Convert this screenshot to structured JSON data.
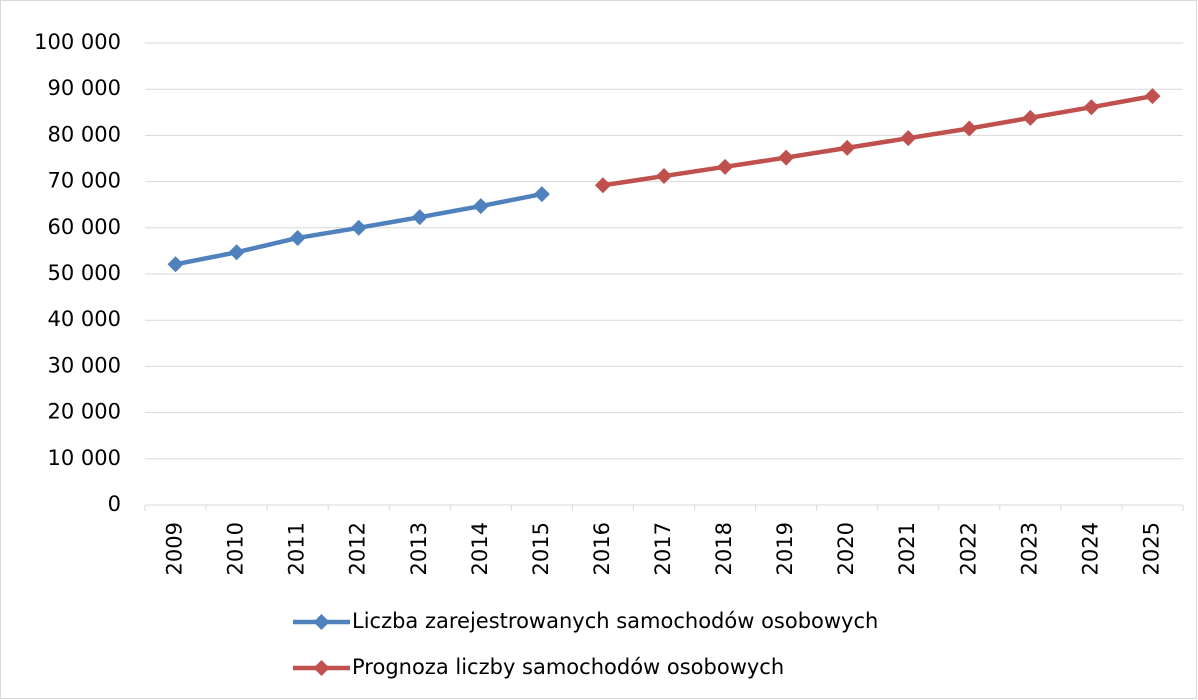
{
  "chart_data": {
    "type": "line",
    "categories": [
      "2009",
      "2010",
      "2011",
      "2012",
      "2013",
      "2014",
      "2015",
      "2016",
      "2017",
      "2018",
      "2019",
      "2020",
      "2021",
      "2022",
      "2023",
      "2024",
      "2025"
    ],
    "series": [
      {
        "name": "Liczba zarejestrowanych samochodów osobowych",
        "color": "#4f81bd",
        "values": [
          52100,
          54700,
          57800,
          60000,
          62300,
          64700,
          67300,
          null,
          null,
          null,
          null,
          null,
          null,
          null,
          null,
          null,
          null
        ]
      },
      {
        "name": "Prognoza liczby samochodów osobowych",
        "color": "#c0504d",
        "values": [
          null,
          null,
          null,
          null,
          null,
          null,
          null,
          69200,
          71200,
          73200,
          75200,
          77300,
          79400,
          81500,
          83800,
          86100,
          88500
        ]
      }
    ],
    "ylim": [
      0,
      100000
    ],
    "yticks": [
      0,
      {
        "value": 10000,
        "label": "10 000"
      },
      {
        "value": 20000,
        "label": "20 000"
      },
      {
        "value": 30000,
        "label": "30 000"
      },
      {
        "value": 40000,
        "label": "40 000"
      },
      {
        "value": 50000,
        "label": "50 000"
      },
      {
        "value": 60000,
        "label": "60 000"
      },
      {
        "value": 70000,
        "label": "70 000"
      },
      {
        "value": 80000,
        "label": "80 000"
      },
      {
        "value": 90000,
        "label": "90 000"
      },
      {
        "value": 100000,
        "label": "100 000"
      }
    ],
    "grid": true,
    "legend": "bottom"
  }
}
